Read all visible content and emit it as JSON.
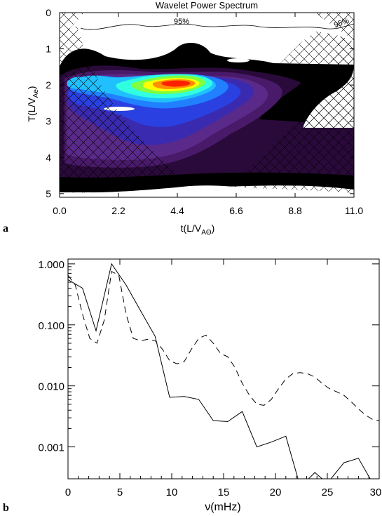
{
  "chart_data": [
    {
      "panel": "a",
      "type": "heatmap",
      "title": "Wavelet Power Spectrum",
      "xlabel": "t(L/V",
      "xlabel_sub": "AΘ",
      "xlabel_close": ")",
      "ylabel": "T(L/V",
      "ylabel_sub": "Ae",
      "ylabel_close": ")",
      "xlim": [
        0,
        11
      ],
      "ylim_inverted": [
        0,
        5.1
      ],
      "x_ticks": [
        "0.0",
        "2.2",
        "4.4",
        "6.6",
        "8.8",
        "11.0"
      ],
      "y_ticks": [
        "0",
        "1",
        "2",
        "3",
        "4",
        "5"
      ],
      "significance_labels": [
        "95%",
        "95%"
      ],
      "colormap": [
        "#000000",
        "#2a0a3a",
        "#4a1a6a",
        "#5a2a8a",
        "#3a2ab0",
        "#2a40e0",
        "#2080ff",
        "#20c0ff",
        "#30ffe0",
        "#80ff40",
        "#ffff00",
        "#ff9000",
        "#ff2000"
      ],
      "peak": {
        "t": 5.0,
        "T": 1.85,
        "color": "#ff2000"
      },
      "secondary_peak": {
        "t": 0.9,
        "T": 1.8
      }
    },
    {
      "panel": "b",
      "type": "line",
      "xlabel": "ν(mHz)",
      "yscale": "log",
      "xlim": [
        0,
        30
      ],
      "ylim": [
        0.0003,
        1.2
      ],
      "x_ticks": [
        "0",
        "5",
        "10",
        "15",
        "20",
        "25",
        "30"
      ],
      "y_ticks": [
        "1.000",
        "0.100",
        "0.010",
        "0.001"
      ],
      "series": [
        {
          "style": "solid",
          "x": [
            0,
            1.4,
            2.7,
            4.2,
            5.6,
            7.0,
            8.4,
            9.8,
            11.2,
            12.6,
            14.0,
            15.4,
            16.8,
            18.2,
            19.6,
            21.0,
            22.4,
            23.8,
            24.5,
            25.2,
            26.6,
            28.0,
            29.4
          ],
          "y": [
            0.55,
            0.4,
            0.08,
            1.0,
            0.45,
            0.17,
            0.065,
            0.0065,
            0.0067,
            0.006,
            0.0027,
            0.0026,
            0.0038,
            0.001,
            0.0012,
            0.0015,
            0.00022,
            0.00038,
            0.0003,
            0.00028,
            0.00055,
            0.00065,
            0.00025
          ]
        },
        {
          "style": "dashed",
          "x": [
            0,
            0.7,
            1.4,
            2.1,
            2.8,
            3.5,
            4.2,
            4.9,
            5.6,
            6.3,
            7.0,
            7.7,
            8.4,
            9.1,
            9.8,
            10.5,
            11.2,
            11.9,
            12.6,
            13.3,
            14.0,
            14.7,
            15.4,
            16.1,
            16.8,
            17.5,
            18.2,
            18.9,
            19.6,
            20.3,
            21.0,
            21.7,
            22.4,
            23.1,
            23.8,
            24.5,
            25.2,
            25.9,
            26.6,
            27.3,
            28.0,
            28.7,
            29.4,
            30.0
          ],
          "y": [
            0.65,
            0.45,
            0.15,
            0.06,
            0.05,
            0.12,
            0.75,
            0.65,
            0.15,
            0.06,
            0.055,
            0.058,
            0.055,
            0.04,
            0.026,
            0.023,
            0.025,
            0.04,
            0.06,
            0.068,
            0.05,
            0.034,
            0.03,
            0.02,
            0.011,
            0.007,
            0.005,
            0.0048,
            0.006,
            0.009,
            0.013,
            0.016,
            0.0165,
            0.0158,
            0.014,
            0.011,
            0.009,
            0.008,
            0.007,
            0.0055,
            0.0042,
            0.0033,
            0.0028,
            0.0027
          ]
        }
      ]
    }
  ]
}
